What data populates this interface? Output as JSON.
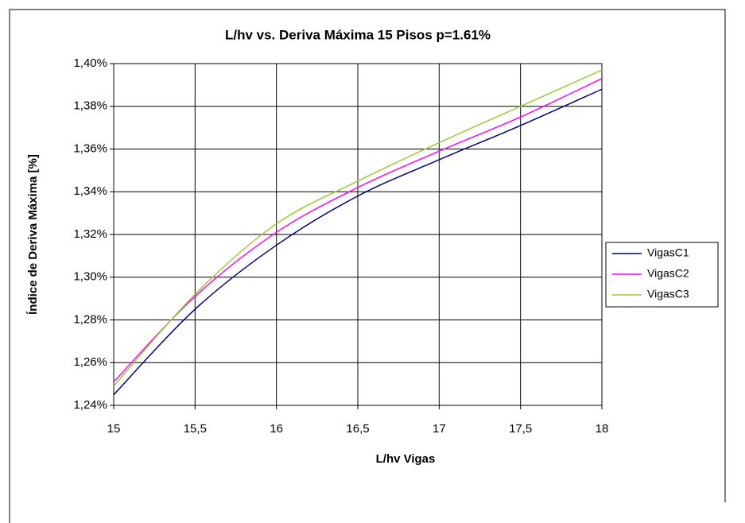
{
  "chart_data": {
    "type": "line",
    "title": "L/hv vs. Deriva Máxima 15 Pisos p=1.61%",
    "xlabel": "L/hv Vigas",
    "ylabel": "Índice de Deriva Máxima [%]",
    "x": [
      15,
      15.5,
      16,
      16.5,
      17,
      17.5,
      18
    ],
    "series": [
      {
        "name": "VigasC1",
        "color": "#000080",
        "values": [
          1.245,
          1.285,
          1.315,
          1.338,
          1.355,
          1.371,
          1.388
        ]
      },
      {
        "name": "VigasC2",
        "color": "#ff00ff",
        "values": [
          1.251,
          1.291,
          1.321,
          1.342,
          1.359,
          1.375,
          1.393
        ]
      },
      {
        "name": "VigasC3",
        "color": "#99cc33",
        "values": [
          1.249,
          1.292,
          1.325,
          1.345,
          1.363,
          1.38,
          1.397
        ]
      }
    ],
    "xlim": [
      15,
      18
    ],
    "xticks": [
      15,
      {
        "value": 15.5,
        "label": "15,5"
      },
      16,
      {
        "value": 16.5,
        "label": "16,5"
      },
      17,
      {
        "value": 17.5,
        "label": "17,5"
      },
      18
    ],
    "ylim": [
      1.24,
      1.4
    ],
    "yticks": [
      {
        "value": 1.24,
        "label": "1,24%"
      },
      {
        "value": 1.26,
        "label": "1,26%"
      },
      {
        "value": 1.28,
        "label": "1,28%"
      },
      {
        "value": 1.3,
        "label": "1,30%"
      },
      {
        "value": 1.32,
        "label": "1,32%"
      },
      {
        "value": 1.34,
        "label": "1,34%"
      },
      {
        "value": 1.36,
        "label": "1,36%"
      },
      {
        "value": 1.38,
        "label": "1,38%"
      },
      {
        "value": 1.4,
        "label": "1,40%"
      }
    ],
    "grid": true,
    "legend": "right"
  }
}
